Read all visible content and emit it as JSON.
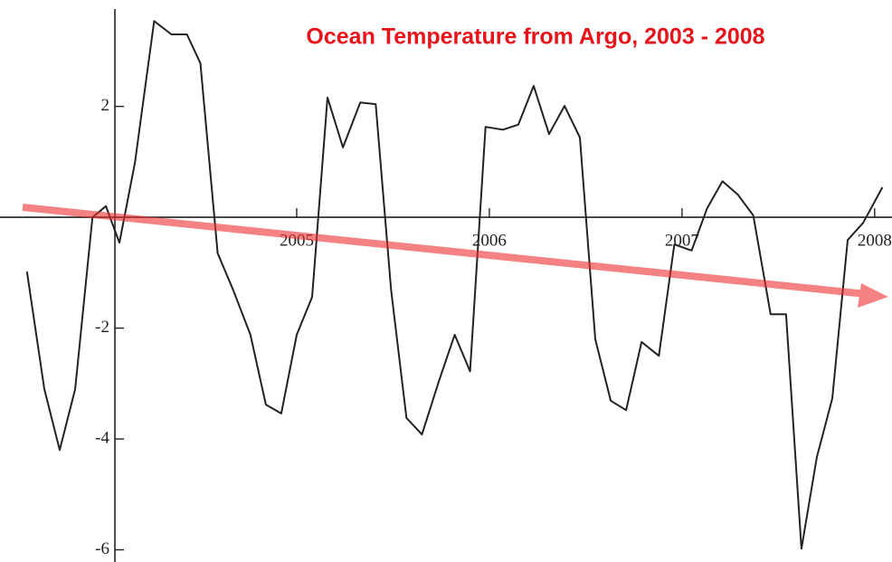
{
  "chart_data": {
    "type": "line",
    "title": "Ocean Temperature from Argo, 2003 - 2008",
    "x": [
      2003.6,
      2003.69,
      2003.77,
      2003.85,
      2003.94,
      2004.01,
      2004.08,
      2004.16,
      2004.26,
      2004.35,
      2004.43,
      2004.5,
      2004.59,
      2004.67,
      2004.76,
      2004.84,
      2004.92,
      2005.0,
      2005.08,
      2005.16,
      2005.24,
      2005.33,
      2005.41,
      2005.49,
      2005.57,
      2005.65,
      2005.74,
      2005.82,
      2005.9,
      2005.98,
      2006.07,
      2006.15,
      2006.23,
      2006.31,
      2006.39,
      2006.47,
      2006.55,
      2006.63,
      2006.71,
      2006.79,
      2006.88,
      2006.96,
      2007.05,
      2007.13,
      2007.21,
      2007.29,
      2007.37,
      2007.46,
      2007.54,
      2007.62,
      2007.7,
      2007.78,
      2007.86,
      2007.94,
      2008.04
    ],
    "values": [
      -0.98,
      -3.1,
      -4.2,
      -3.1,
      0,
      0.2,
      -0.46,
      0.98,
      3.54,
      3.3,
      3.3,
      2.78,
      -0.65,
      -1.31,
      -2.12,
      -3.38,
      -3.54,
      -2.12,
      -1.44,
      2.16,
      1.26,
      2.07,
      2.04,
      -1.31,
      -3.62,
      -3.92,
      -2.94,
      -2.12,
      -2.78,
      1.63,
      1.58,
      1.67,
      2.37,
      1.5,
      2.01,
      1.44,
      -2.2,
      -3.31,
      -3.48,
      -2.25,
      -2.5,
      -0.49,
      -0.6,
      0.16,
      0.65,
      0.41,
      0.03,
      -1.75,
      -1.75,
      -5.98,
      -4.33,
      -3.27,
      -0.41,
      -0.1,
      0.54
    ],
    "color": "#222222",
    "xlim": [
      2003.46,
      2008.09
    ],
    "xticks": [
      2005,
      2006,
      2007,
      2008
    ],
    "ylim": [
      -6.22,
      3.92
    ],
    "yticks": [
      -6,
      -4,
      -2,
      2
    ]
  }
}
